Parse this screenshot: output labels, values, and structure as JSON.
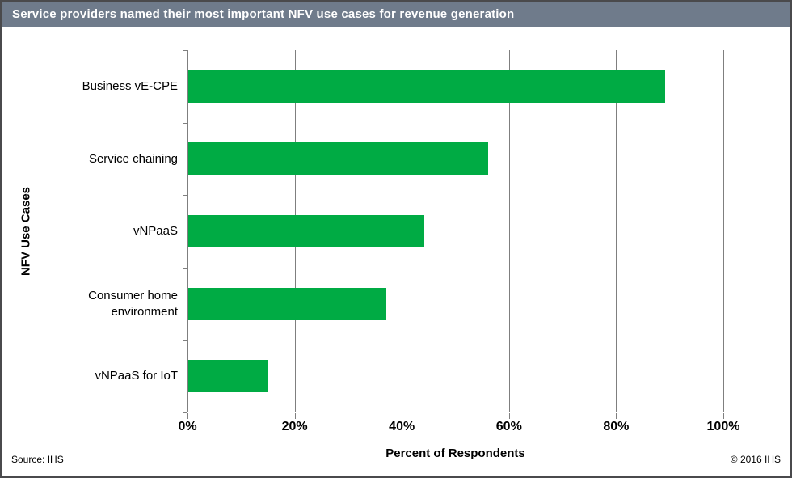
{
  "title_bar": {
    "title": "Service providers named their most important NFV use cases for revenue generation",
    "bg_color": "#6f7b8b",
    "text_color": "#ffffff"
  },
  "chart_data": {
    "type": "bar",
    "orientation": "horizontal",
    "title": "Service providers named their most important NFV use cases for revenue generation",
    "categories": [
      "Business vE-CPE",
      "Service chaining",
      "vNPaaS",
      "Consumer home environment",
      "vNPaaS for IoT"
    ],
    "values": [
      89,
      56,
      44,
      37,
      15
    ],
    "xlabel": "Percent of Respondents",
    "ylabel": "NFV Use Cases",
    "xlim": [
      0,
      100
    ],
    "x_tick_values": [
      0,
      20,
      40,
      60,
      80,
      100
    ],
    "x_tick_labels": [
      "0%",
      "20%",
      "40%",
      "60%",
      "80%",
      "100%"
    ],
    "grid": true,
    "legend": false,
    "bar_color": "#00ab44",
    "gridline_color": "#7f7f7f"
  },
  "footer": {
    "source": "Source: IHS",
    "copyright": "© 2016 IHS"
  }
}
